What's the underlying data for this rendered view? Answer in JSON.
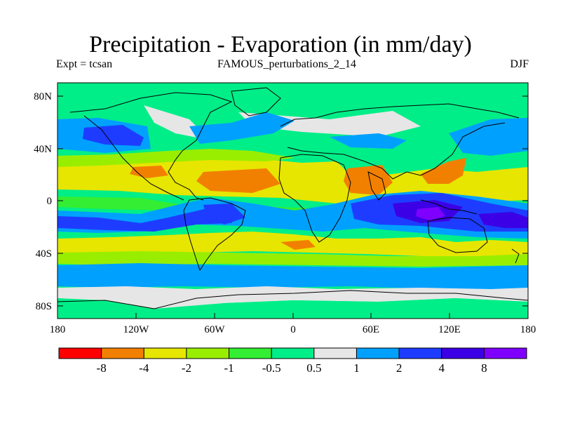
{
  "title": "Precipitation - Evaporation (in mm/day)",
  "subtitle_left": "Expt = tcsan",
  "subtitle_center": "FAMOUS_perturbations_2_14",
  "subtitle_right": "DJF",
  "lat_labels": [
    "80N",
    "40N",
    "0",
    "40S",
    "80S"
  ],
  "lon_labels": [
    "180",
    "120W",
    "60W",
    "0",
    "60E",
    "120E",
    "180"
  ],
  "colorbar": {
    "labels": [
      "-8",
      "-4",
      "-2",
      "-1",
      "-0.5",
      "0.5",
      "1",
      "2",
      "4",
      "8"
    ],
    "colors": [
      "#ff0000",
      "#f28000",
      "#e6e600",
      "#99ee00",
      "#33ee33",
      "#00ee88",
      "#e6e6e6",
      "#00a0ff",
      "#1e3cff",
      "#3c00e6",
      "#8000ff"
    ]
  },
  "palette": {
    "red": "#ff0000",
    "orange": "#f28000",
    "yellow": "#e6e600",
    "lime": "#99ee00",
    "green": "#33ee33",
    "teal": "#00ee88",
    "gray": "#e6e6e6",
    "lightblue": "#00a0ff",
    "blue": "#1e3cff",
    "indigo": "#3c00e6",
    "purple": "#8000ff"
  }
}
